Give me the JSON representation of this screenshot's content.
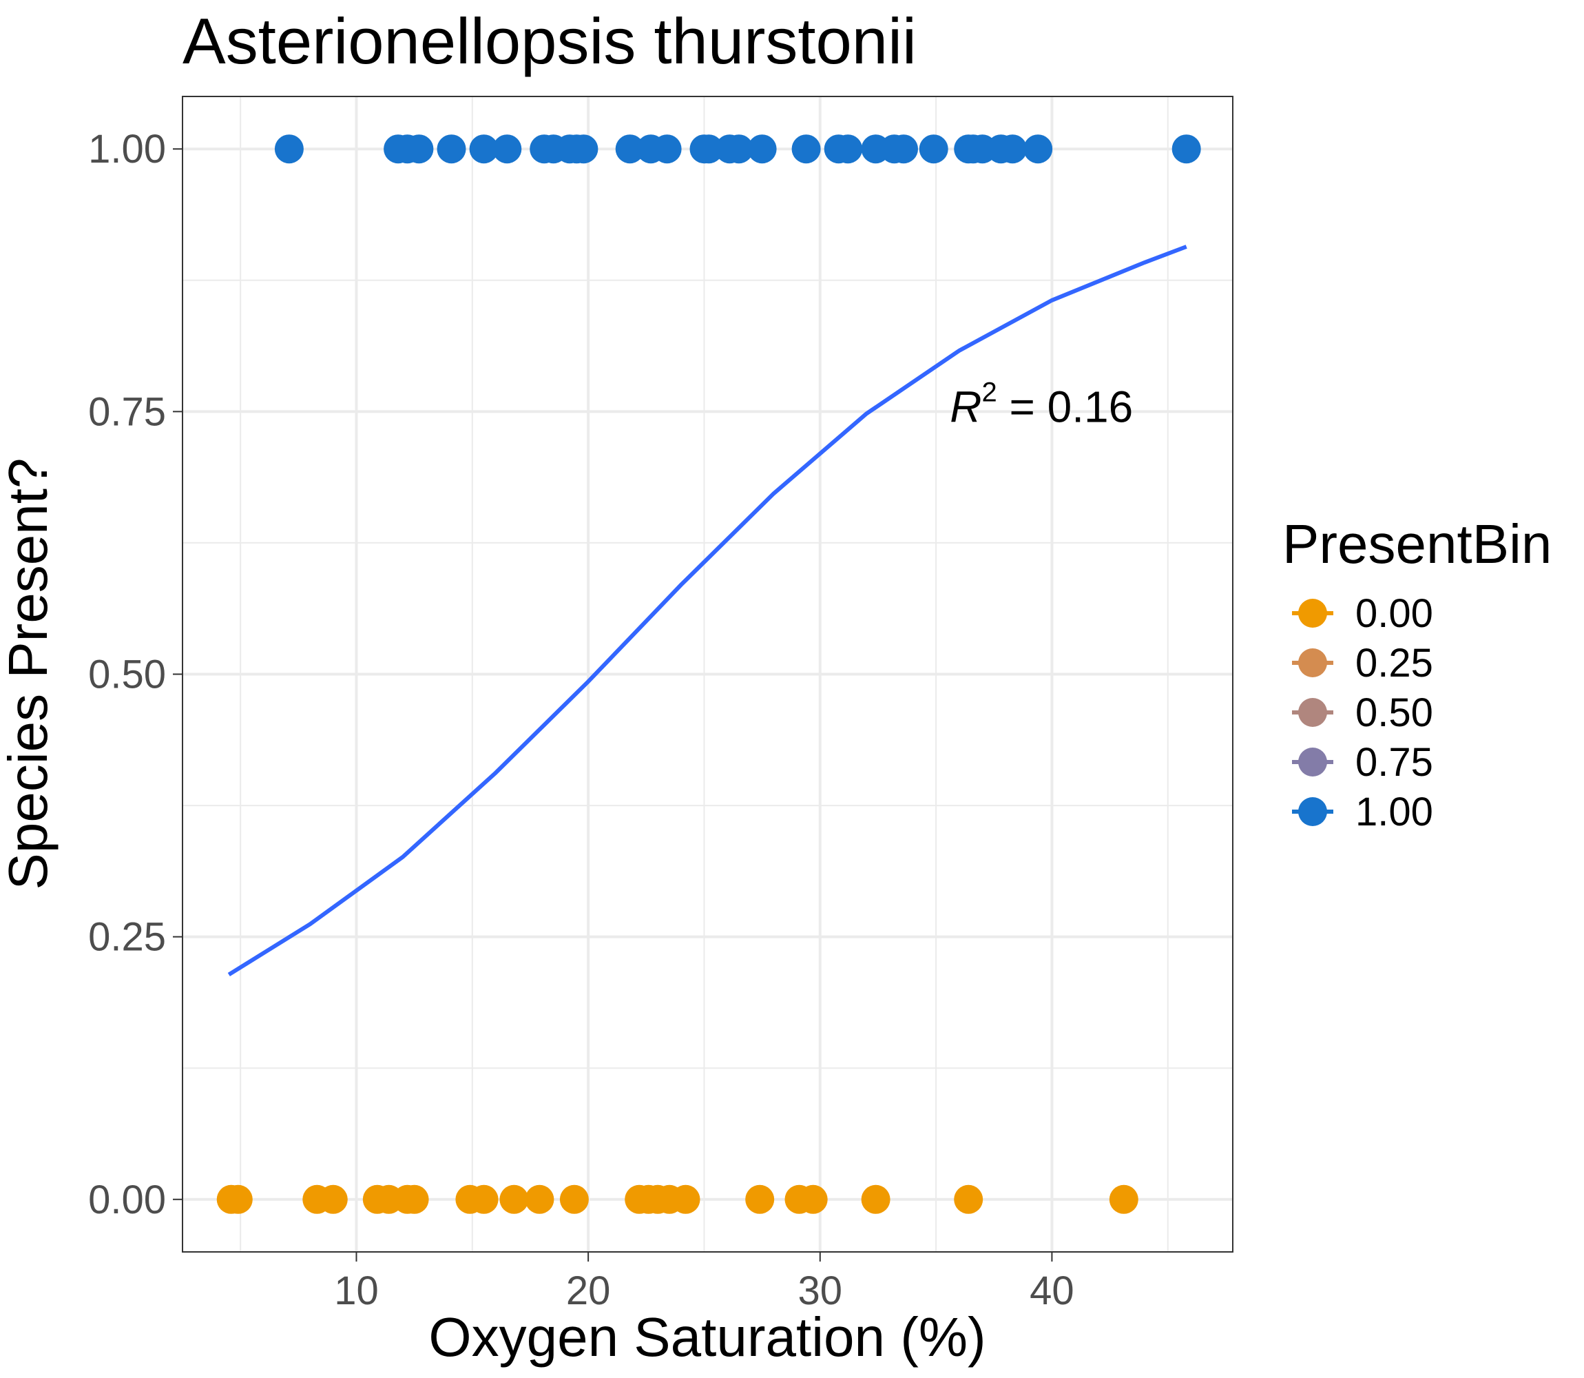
{
  "chart_data": {
    "type": "scatter",
    "title": "Asterionellopsis thurstonii",
    "xlabel": "Oxygen Saturation (%)",
    "ylabel": "Species Present?",
    "xlim": [
      2.5,
      47.8
    ],
    "ylim": [
      -0.05,
      1.05
    ],
    "x_ticks": [
      10,
      20,
      30,
      40
    ],
    "x_tick_labels": [
      "10",
      "20",
      "30",
      "40"
    ],
    "y_ticks": [
      0,
      0.25,
      0.5,
      0.75,
      1.0
    ],
    "y_tick_labels": [
      "0.00",
      "0.25",
      "0.50",
      "0.75",
      "1.00"
    ],
    "grid": true,
    "annotation": {
      "r_label": "R",
      "exponent": "2",
      "equals_value": " = 0.16",
      "x": 43.5,
      "y": 0.74
    },
    "legend": {
      "title": "PresentBin",
      "placement": "right",
      "entries": [
        {
          "label": "0.00",
          "color": "#f09a00"
        },
        {
          "label": "0.25",
          "color": "#d48c50"
        },
        {
          "label": "0.50",
          "color": "#b0867e"
        },
        {
          "label": "0.75",
          "color": "#837ca8"
        },
        {
          "label": "1.00",
          "color": "#1874cd"
        }
      ]
    },
    "series": [
      {
        "name": "1.00",
        "color": "#1874cd",
        "y": 1,
        "x": [
          7.1,
          11.8,
          12.2,
          12.7,
          14.1,
          15.5,
          16.5,
          18.1,
          18.5,
          19.2,
          19.5,
          19.8,
          21.8,
          22.7,
          23.4,
          25.0,
          25.2,
          26.1,
          26.5,
          27.5,
          29.4,
          30.8,
          31.2,
          32.4,
          33.2,
          33.6,
          34.9,
          36.4,
          36.6,
          37.0,
          37.8,
          38.3,
          39.4,
          45.8
        ]
      },
      {
        "name": "0.00",
        "color": "#f09a00",
        "y": 0,
        "x": [
          4.6,
          4.9,
          8.3,
          9.0,
          10.9,
          11.4,
          12.2,
          12.5,
          14.9,
          15.5,
          16.8,
          17.9,
          19.4,
          22.2,
          22.6,
          23.0,
          23.5,
          24.2,
          27.4,
          29.1,
          29.7,
          32.4,
          36.4,
          43.1
        ]
      }
    ],
    "fit_line": {
      "type": "logistic",
      "color": "#3366ff",
      "x": [
        4.5,
        8,
        12,
        16,
        20,
        24,
        28,
        32,
        36,
        40,
        44,
        45.8
      ],
      "y": [
        0.214,
        0.262,
        0.326,
        0.406,
        0.493,
        0.585,
        0.672,
        0.748,
        0.808,
        0.856,
        0.892,
        0.907
      ]
    }
  }
}
